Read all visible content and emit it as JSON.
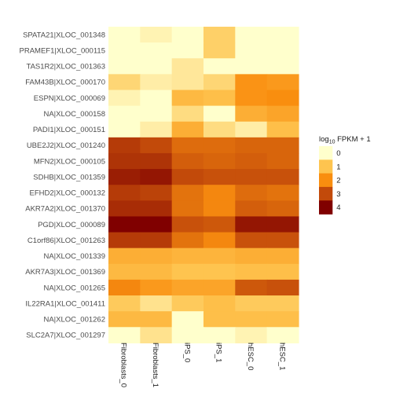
{
  "chart_data": {
    "type": "heatmap",
    "title": "",
    "xlabel": "",
    "ylabel": "",
    "columns": [
      "Fibroblasts_0",
      "Fibroblasts_1",
      "iPS_0",
      "iPS_1",
      "hESC_0",
      "hESC_1"
    ],
    "rows": [
      "SPATA21|XLOC_001348",
      "PRAMEF1|XLOC_000115",
      "TAS1R2|XLOC_001363",
      "FAM43B|XLOC_000170",
      "ESPN|XLOC_000069",
      "NA|XLOC_000158",
      "PADI1|XLOC_000151",
      "UBE2J2|XLOC_001240",
      "MFN2|XLOC_000105",
      "SDHB|XLOC_001359",
      "EFHD2|XLOC_000132",
      "AKR7A2|XLOC_001370",
      "PGD|XLOC_000089",
      "C1orf86|XLOC_001263",
      "NA|XLOC_001339",
      "AKR7A3|XLOC_001369",
      "NA|XLOC_001265",
      "IL22RA1|XLOC_001411",
      "NA|XLOC_001262",
      "SLC2A7|XLOC_001297"
    ],
    "values": [
      [
        0.0,
        0.2,
        0.0,
        0.8,
        0.0,
        0.0
      ],
      [
        0.0,
        0.0,
        0.0,
        0.8,
        0.0,
        0.0
      ],
      [
        0.0,
        0.0,
        0.4,
        0.0,
        0.0,
        0.0
      ],
      [
        0.7,
        0.3,
        0.4,
        0.7,
        1.9,
        1.8
      ],
      [
        0.2,
        0.0,
        1.2,
        1.1,
        1.9,
        2.0
      ],
      [
        0.0,
        0.0,
        0.6,
        0.0,
        1.4,
        1.6
      ],
      [
        0.0,
        0.3,
        1.4,
        0.6,
        0.3,
        1.1
      ],
      [
        3.2,
        3.0,
        2.5,
        2.5,
        2.6,
        2.6
      ],
      [
        3.3,
        3.3,
        2.7,
        2.6,
        2.7,
        2.6
      ],
      [
        3.6,
        3.7,
        3.0,
        2.9,
        2.9,
        2.9
      ],
      [
        3.2,
        3.1,
        2.4,
        2.1,
        2.5,
        2.4
      ],
      [
        3.4,
        3.4,
        2.4,
        2.1,
        2.7,
        2.6
      ],
      [
        4.0,
        4.1,
        2.9,
        2.8,
        3.7,
        3.7
      ],
      [
        3.2,
        3.2,
        2.4,
        2.1,
        2.9,
        2.9
      ],
      [
        1.4,
        1.4,
        1.3,
        1.3,
        1.4,
        1.4
      ],
      [
        1.2,
        1.2,
        1.0,
        1.0,
        1.1,
        1.1
      ],
      [
        2.1,
        1.8,
        1.6,
        1.6,
        2.8,
        2.9
      ],
      [
        0.9,
        0.5,
        0.9,
        1.1,
        0.9,
        0.9
      ],
      [
        1.2,
        1.2,
        0.0,
        1.1,
        1.1,
        1.1
      ],
      [
        0.0,
        0.5,
        0.0,
        0.0,
        0.2,
        0.0
      ]
    ],
    "legend": {
      "title_main": "log",
      "title_sub": "10",
      "title_rest": " FPKM + 1",
      "ticks": [
        0,
        1,
        2,
        3,
        4
      ],
      "placement": "right"
    },
    "color_scale": {
      "domain": [
        0,
        1,
        2,
        3,
        4
      ],
      "colors": [
        "#ffffcc",
        "#fec44f",
        "#f98e0f",
        "#c24a0a",
        "#800000"
      ]
    }
  }
}
